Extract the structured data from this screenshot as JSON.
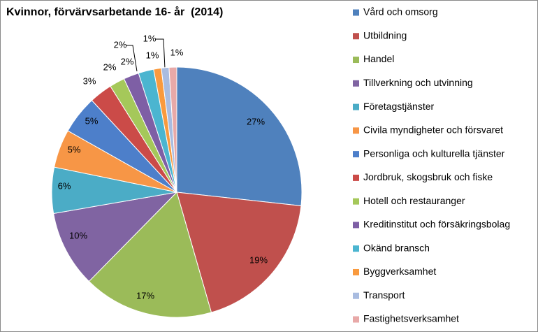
{
  "chart_data": {
    "type": "pie",
    "title": "Kvinnor, förvärvsarbetande 16- år  (2014)",
    "categories": [
      "Vård och omsorg",
      "Utbildning",
      "Handel",
      "Tillverkning och utvinning",
      "Företagstjänster",
      "Civila myndigheter och försvaret",
      "Personliga och kulturella tjänster",
      "Jordbruk, skogsbruk och fiske",
      "Hotell och restauranger",
      "Kreditinstitut och försäkringsbolag",
      "Okänd bransch",
      "Byggverksamhet",
      "Transport",
      "Fastighetsverksamhet"
    ],
    "values": [
      27,
      19,
      17,
      10,
      6,
      5,
      5,
      3,
      2,
      2,
      2,
      1,
      1,
      1
    ],
    "value_labels": [
      "27%",
      "19%",
      "17%",
      "10%",
      "6%",
      "5%",
      "5%",
      "3%",
      "2%",
      "2%",
      "2%",
      "1%",
      "1%",
      "1%"
    ],
    "colors": [
      "#4F81BD",
      "#C0504D",
      "#9BBB59",
      "#8064A2",
      "#4BACC6",
      "#F79646",
      "#4D7FCA",
      "#CB4B48",
      "#A5C85A",
      "#7E5FA5",
      "#4BB5D0",
      "#F99A3E",
      "#A9BCE0",
      "#E8A9A8"
    ],
    "legend": "right"
  }
}
